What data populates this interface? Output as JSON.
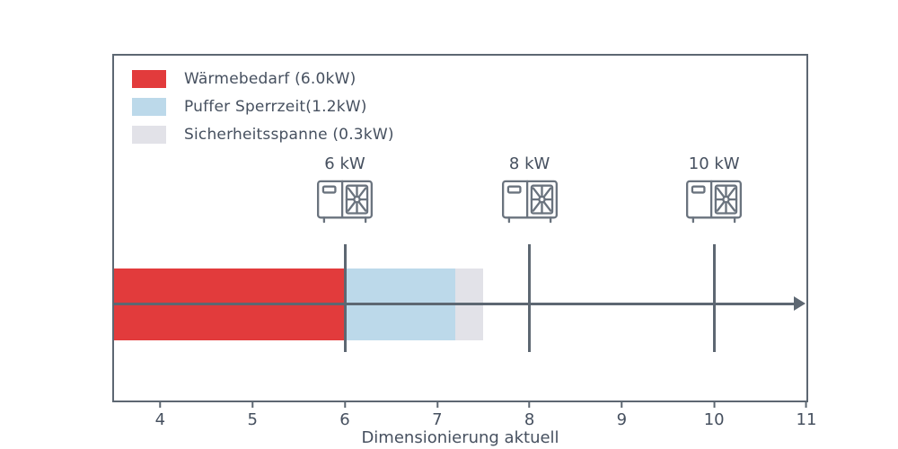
{
  "chart_data": {
    "type": "bar",
    "orientation": "horizontal",
    "xlabel": "Dimensionierung aktuell",
    "xlim": [
      3.5,
      11
    ],
    "xticks": [
      4,
      5,
      6,
      7,
      8,
      9,
      10,
      11
    ],
    "grid": false,
    "legend_position": "upper-left-inside",
    "bar": {
      "segments": [
        {
          "name": "Wärmebedarf",
          "start": 3.5,
          "end": 6.0,
          "value_kw": 6.0,
          "color": "#e23b3c"
        },
        {
          "name": "Puffer Sperrzeit",
          "start": 6.0,
          "end": 7.2,
          "value_kw": 1.2,
          "color": "#bcd9ea"
        },
        {
          "name": "Sicherheitsspanne",
          "start": 7.2,
          "end": 7.5,
          "value_kw": 0.3,
          "color": "#e2e2e8"
        }
      ]
    },
    "markers": [
      {
        "kw": 6,
        "label": "6 kW",
        "icon": "heat-pump-icon"
      },
      {
        "kw": 8,
        "label": "8 kW",
        "icon": "heat-pump-icon"
      },
      {
        "kw": 10,
        "label": "10 kW",
        "icon": "heat-pump-icon"
      }
    ],
    "legend": [
      {
        "label": "Wärmebedarf (6.0kW)",
        "color": "#e23b3c"
      },
      {
        "label": "Puffer Sperrzeit(1.2kW)",
        "color": "#bcd9ea"
      },
      {
        "label": "Sicherheitsspanne (0.3kW)",
        "color": "#e2e2e8"
      }
    ],
    "colors": {
      "axis": "#5d6772",
      "text": "#46505f"
    }
  }
}
